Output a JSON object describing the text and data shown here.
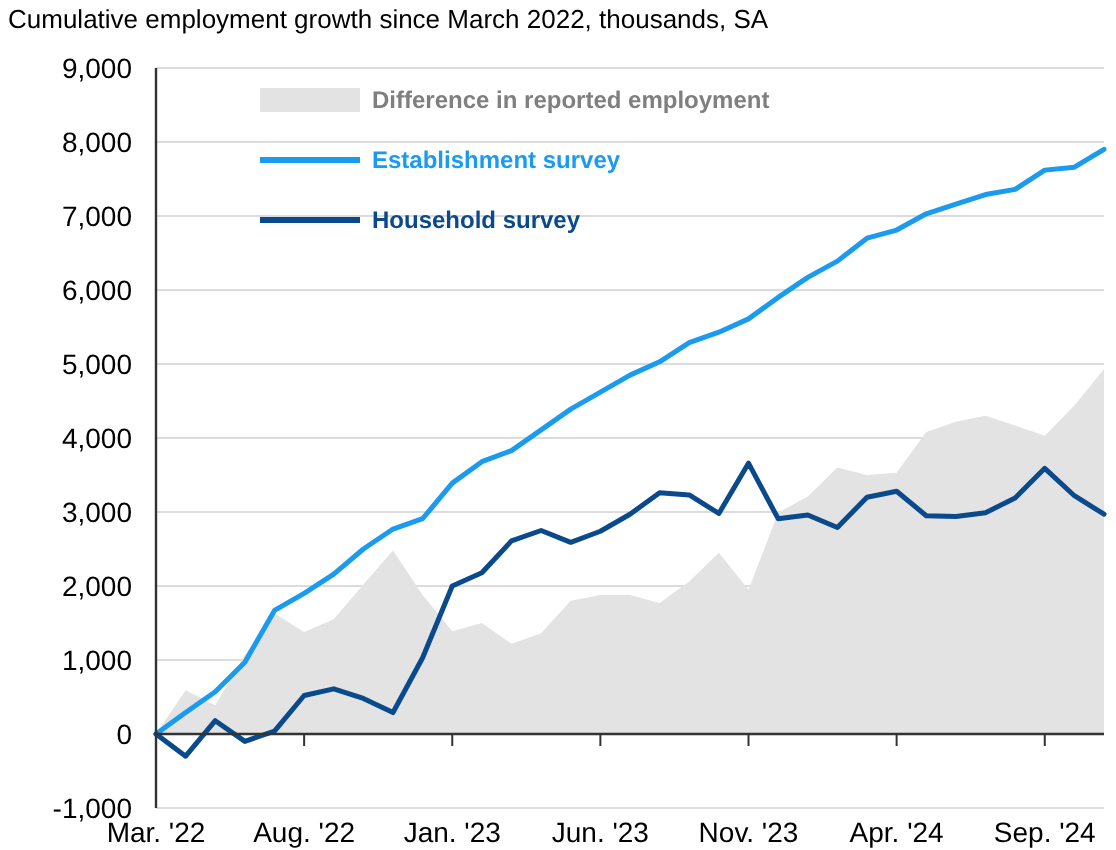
{
  "chart_data": {
    "type": "line",
    "title": "Cumulative employment growth since March 2022, thousands, SA",
    "categories": [
      "Mar. '22",
      null,
      null,
      null,
      null,
      "Aug. '22",
      null,
      null,
      null,
      null,
      "Jan. '23",
      null,
      null,
      null,
      null,
      "Jun. '23",
      null,
      null,
      null,
      null,
      "Nov. '23",
      null,
      null,
      null,
      null,
      "Apr. '24",
      null,
      null,
      null,
      null,
      "Sep. '24",
      null,
      null
    ],
    "series": [
      {
        "name": "Difference in reported employment",
        "type": "area",
        "color": "#e3e3e3",
        "values": [
          0,
          590,
          390,
          1070,
          1630,
          1380,
          1550,
          2020,
          2480,
          1880,
          1390,
          1500,
          1220,
          1360,
          1800,
          1880,
          1880,
          1770,
          2060,
          2450,
          1950,
          2990,
          3210,
          3600,
          3500,
          3530,
          4080,
          4220,
          4300,
          4170,
          4030,
          4440,
          4930
        ]
      },
      {
        "name": "Establishment survey",
        "color": "#1a9bf0",
        "values": [
          0,
          290,
          570,
          970,
          1670,
          1900,
          2160,
          2500,
          2770,
          2910,
          3390,
          3680,
          3830,
          4110,
          4390,
          4620,
          4850,
          5030,
          5290,
          5430,
          5610,
          5900,
          6170,
          6390,
          6700,
          6810,
          7030,
          7160,
          7290,
          7360,
          7620,
          7660,
          7900
        ]
      },
      {
        "name": "Household survey",
        "color": "#0a4a8c",
        "values": [
          0,
          -300,
          180,
          -100,
          40,
          520,
          610,
          480,
          290,
          1030,
          2000,
          2180,
          2610,
          2750,
          2590,
          2740,
          2970,
          3260,
          3230,
          2980,
          3660,
          2910,
          2960,
          2790,
          3200,
          3280,
          2950,
          2940,
          2990,
          3190,
          3590,
          3220,
          2970
        ]
      }
    ],
    "ylim": [
      -1000,
      9000
    ],
    "yticks": [
      {
        "value": -1000,
        "label": "-1,000"
      },
      0,
      {
        "value": 1000,
        "label": "1,000"
      },
      {
        "value": 2000,
        "label": "2,000"
      },
      {
        "value": 3000,
        "label": "3,000"
      },
      {
        "value": 4000,
        "label": "4,000"
      },
      {
        "value": 5000,
        "label": "5,000"
      },
      {
        "value": 6000,
        "label": "6,000"
      },
      {
        "value": 7000,
        "label": "7,000"
      },
      {
        "value": 8000,
        "label": "8,000"
      },
      {
        "value": 9000,
        "label": "9,000"
      }
    ],
    "grid": "y",
    "legend": "top left",
    "marker": "none",
    "line_style": "solid"
  }
}
